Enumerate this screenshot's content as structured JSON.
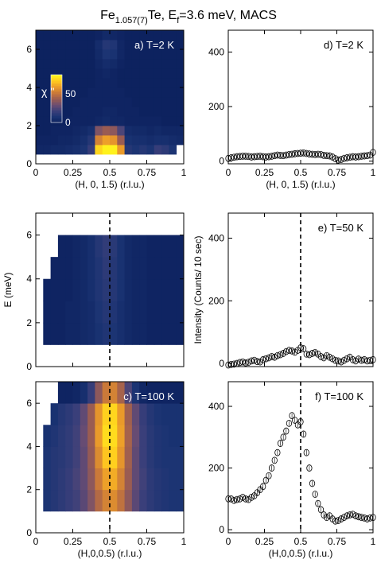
{
  "figure": {
    "title_parts": [
      "Fe",
      "1.057(7)",
      "Te, E",
      "f",
      "=3.6 meV, MACS"
    ]
  },
  "colors": {
    "colormap": [
      "#0b1f5c",
      "#1a3373",
      "#3a3f7a",
      "#6a4d73",
      "#9a5c52",
      "#c8773a",
      "#ea9a2a",
      "#ffc81f",
      "#fff21c"
    ],
    "empty": "#ffffff"
  },
  "colorbar": {
    "label": "χ ''",
    "ticks": [
      "50",
      "0"
    ]
  },
  "chart_data": [
    {
      "id": "a",
      "type": "heatmap",
      "label": "a) T=2 K",
      "xlabel": "(H, 0, 1.5) (r.l.u.)",
      "ylabel": "",
      "xlim": [
        0,
        1
      ],
      "ylim": [
        0,
        7
      ],
      "x_ticks": [
        "0",
        "0.25",
        "0.5",
        "0.75",
        "1"
      ],
      "y_ticks": [
        "0",
        "2",
        "4",
        "6"
      ],
      "x_edges": [
        0,
        0.05,
        0.1,
        0.15,
        0.2,
        0.25,
        0.3,
        0.35,
        0.4,
        0.45,
        0.5,
        0.55,
        0.6,
        0.65,
        0.7,
        0.75,
        0.8,
        0.85,
        0.9,
        0.95,
        1.0
      ],
      "rows": [
        {
          "e0": 0.0,
          "e1": 0.5,
          "v": [
            null,
            null,
            null,
            null,
            null,
            null,
            null,
            null,
            null,
            null,
            null,
            null,
            null,
            null,
            null,
            null,
            null,
            null,
            null,
            null
          ]
        },
        {
          "e0": 0.5,
          "e1": 1.0,
          "v": [
            3,
            3,
            4,
            4,
            5,
            6,
            8,
            14,
            55,
            62,
            60,
            45,
            10,
            8,
            10,
            8,
            14,
            12,
            8,
            null
          ]
        },
        {
          "e0": 1.0,
          "e1": 1.5,
          "v": [
            2,
            2,
            2,
            3,
            3,
            4,
            6,
            10,
            40,
            46,
            44,
            30,
            7,
            6,
            6,
            5,
            6,
            6,
            5,
            4
          ]
        },
        {
          "e0": 1.5,
          "e1": 2.0,
          "v": [
            1,
            1,
            2,
            2,
            2,
            3,
            4,
            6,
            26,
            30,
            28,
            18,
            5,
            4,
            4,
            3,
            4,
            3,
            3,
            3
          ]
        },
        {
          "e0": 2.0,
          "e1": 2.5,
          "v": [
            1,
            1,
            1,
            1,
            2,
            2,
            2,
            2,
            3,
            4,
            3,
            3,
            2,
            2,
            2,
            2,
            2,
            1,
            1,
            1
          ]
        },
        {
          "e0": 2.5,
          "e1": 3.0,
          "v": [
            1,
            1,
            1,
            1,
            1,
            2,
            2,
            2,
            2,
            3,
            3,
            2,
            2,
            2,
            1,
            1,
            1,
            1,
            1,
            1
          ]
        },
        {
          "e0": 3.0,
          "e1": 3.5,
          "v": [
            1,
            1,
            1,
            1,
            1,
            1,
            2,
            2,
            2,
            2,
            2,
            2,
            2,
            1,
            1,
            1,
            1,
            1,
            1,
            1
          ]
        },
        {
          "e0": 3.5,
          "e1": 4.0,
          "v": [
            1,
            1,
            1,
            1,
            1,
            1,
            1,
            2,
            2,
            2,
            2,
            2,
            1,
            1,
            1,
            1,
            1,
            1,
            1,
            1
          ]
        },
        {
          "e0": 4.0,
          "e1": 4.5,
          "v": [
            1,
            1,
            1,
            1,
            1,
            1,
            1,
            1,
            2,
            2,
            2,
            1,
            1,
            1,
            1,
            1,
            1,
            1,
            1,
            1
          ]
        },
        {
          "e0": 4.5,
          "e1": 5.0,
          "v": [
            1,
            1,
            1,
            1,
            1,
            1,
            1,
            1,
            2,
            3,
            2,
            1,
            1,
            1,
            1,
            1,
            1,
            1,
            1,
            1
          ]
        },
        {
          "e0": 5.0,
          "e1": 5.5,
          "v": [
            1,
            1,
            1,
            1,
            1,
            1,
            1,
            1,
            3,
            5,
            4,
            2,
            1,
            1,
            1,
            1,
            1,
            1,
            1,
            1
          ]
        },
        {
          "e0": 5.5,
          "e1": 6.0,
          "v": [
            1,
            1,
            1,
            1,
            1,
            1,
            1,
            1,
            4,
            8,
            7,
            3,
            1,
            1,
            1,
            1,
            1,
            1,
            1,
            1
          ]
        },
        {
          "e0": 6.0,
          "e1": 6.5,
          "v": [
            1,
            1,
            1,
            1,
            1,
            1,
            1,
            1,
            5,
            10,
            9,
            3,
            1,
            1,
            1,
            1,
            1,
            1,
            1,
            1
          ]
        },
        {
          "e0": 6.5,
          "e1": 7.0,
          "v": [
            1,
            1,
            1,
            1,
            1,
            1,
            1,
            1,
            2,
            4,
            3,
            2,
            1,
            1,
            1,
            1,
            1,
            1,
            1,
            1
          ]
        }
      ]
    },
    {
      "id": "b",
      "type": "heatmap",
      "label": "b) T=50 K",
      "xlabel": "",
      "ylabel": "E (meV)",
      "xlim": [
        0,
        1
      ],
      "ylim": [
        0,
        7
      ],
      "x_ticks": [],
      "y_ticks": [
        "0",
        "2",
        "4",
        "6"
      ],
      "dashed_x": 0.5,
      "x_edges": [
        0,
        0.05,
        0.1,
        0.15,
        0.2,
        0.25,
        0.3,
        0.35,
        0.4,
        0.45,
        0.5,
        0.55,
        0.6,
        0.65,
        0.7,
        0.75,
        0.8,
        0.85,
        0.9,
        0.95,
        1.0
      ],
      "rows": [
        {
          "e0": 0.0,
          "e1": 1.0,
          "v": [
            null,
            null,
            null,
            null,
            null,
            null,
            null,
            null,
            null,
            null,
            null,
            null,
            null,
            null,
            null,
            null,
            null,
            null,
            null,
            null
          ]
        },
        {
          "e0": 1.0,
          "e1": 2.0,
          "v": [
            null,
            2,
            2,
            2,
            3,
            3,
            4,
            5,
            7,
            9,
            8,
            6,
            4,
            3,
            3,
            2,
            2,
            2,
            2,
            2
          ]
        },
        {
          "e0": 2.0,
          "e1": 3.0,
          "v": [
            null,
            2,
            2,
            2,
            3,
            3,
            4,
            5,
            8,
            10,
            9,
            6,
            4,
            3,
            3,
            2,
            2,
            2,
            2,
            2
          ]
        },
        {
          "e0": 3.0,
          "e1": 4.0,
          "v": [
            null,
            2,
            2,
            2,
            2,
            3,
            4,
            6,
            9,
            11,
            10,
            7,
            4,
            3,
            3,
            2,
            2,
            2,
            2,
            2
          ]
        },
        {
          "e0": 4.0,
          "e1": 5.0,
          "v": [
            null,
            null,
            2,
            2,
            2,
            3,
            4,
            6,
            9,
            12,
            10,
            7,
            4,
            3,
            3,
            2,
            2,
            2,
            2,
            2
          ]
        },
        {
          "e0": 5.0,
          "e1": 6.0,
          "v": [
            null,
            null,
            null,
            2,
            2,
            3,
            4,
            6,
            10,
            13,
            11,
            7,
            4,
            3,
            3,
            2,
            2,
            2,
            2,
            2
          ]
        },
        {
          "e0": 6.0,
          "e1": 7.0,
          "v": [
            null,
            null,
            null,
            null,
            null,
            null,
            null,
            null,
            null,
            null,
            null,
            null,
            null,
            null,
            null,
            null,
            null,
            null,
            null,
            null
          ]
        }
      ]
    },
    {
      "id": "c",
      "type": "heatmap",
      "label": "c) T=100 K",
      "xlabel": "(H,0,0.5) (r.l.u.)",
      "ylabel": "",
      "xlim": [
        0,
        1
      ],
      "ylim": [
        0,
        7
      ],
      "x_ticks": [
        "0",
        "0.25",
        "0.5",
        "0.75",
        "1"
      ],
      "y_ticks": [
        "0",
        "2",
        "4",
        "6"
      ],
      "dashed_x": 0.5,
      "x_edges": [
        0,
        0.05,
        0.1,
        0.15,
        0.2,
        0.25,
        0.3,
        0.35,
        0.4,
        0.45,
        0.5,
        0.55,
        0.6,
        0.65,
        0.7,
        0.75,
        0.8,
        0.85,
        0.9,
        0.95,
        1.0
      ],
      "rows": [
        {
          "e0": 0.0,
          "e1": 1.0,
          "v": [
            null,
            null,
            null,
            null,
            null,
            null,
            null,
            null,
            null,
            null,
            null,
            null,
            null,
            null,
            null,
            null,
            null,
            null,
            null,
            null
          ]
        },
        {
          "e0": 1.0,
          "e1": 2.0,
          "v": [
            null,
            8,
            10,
            12,
            14,
            16,
            20,
            26,
            34,
            40,
            42,
            36,
            28,
            20,
            15,
            12,
            10,
            9,
            8,
            8
          ]
        },
        {
          "e0": 2.0,
          "e1": 3.0,
          "v": [
            null,
            8,
            10,
            12,
            14,
            17,
            21,
            28,
            38,
            46,
            48,
            40,
            30,
            21,
            16,
            12,
            10,
            9,
            8,
            8
          ]
        },
        {
          "e0": 3.0,
          "e1": 4.0,
          "v": [
            null,
            8,
            10,
            11,
            13,
            16,
            21,
            29,
            42,
            52,
            54,
            44,
            31,
            21,
            15,
            11,
            9,
            8,
            8,
            8
          ]
        },
        {
          "e0": 4.0,
          "e1": 5.0,
          "v": [
            null,
            7,
            9,
            11,
            13,
            16,
            22,
            30,
            45,
            56,
            56,
            46,
            32,
            22,
            15,
            11,
            9,
            8,
            7,
            7
          ]
        },
        {
          "e0": 5.0,
          "e1": 6.0,
          "v": [
            null,
            null,
            7,
            10,
            12,
            15,
            21,
            30,
            44,
            54,
            55,
            45,
            31,
            21,
            14,
            10,
            8,
            7,
            7,
            7
          ]
        },
        {
          "e0": 6.0,
          "e1": 7.0,
          "v": [
            null,
            null,
            null,
            2,
            2,
            3,
            6,
            14,
            28,
            38,
            40,
            32,
            18,
            8,
            3,
            2,
            2,
            2,
            2,
            2
          ]
        }
      ]
    },
    {
      "id": "d",
      "type": "scatter",
      "label": "d) T=2 K",
      "xlabel": "(H, 0, 1.5) (r.l.u.)",
      "ylabel": "",
      "xlim": [
        0,
        1
      ],
      "ylim": [
        -10,
        480
      ],
      "x_ticks": [
        "0",
        "0.25",
        "0.5",
        "0.75",
        "1"
      ],
      "y_ticks": [
        "0",
        "200",
        "400"
      ],
      "x": [
        0.0,
        0.02,
        0.04,
        0.06,
        0.08,
        0.1,
        0.12,
        0.14,
        0.16,
        0.18,
        0.2,
        0.22,
        0.24,
        0.26,
        0.28,
        0.3,
        0.32,
        0.34,
        0.36,
        0.38,
        0.4,
        0.42,
        0.44,
        0.46,
        0.48,
        0.5,
        0.52,
        0.54,
        0.56,
        0.58,
        0.6,
        0.62,
        0.64,
        0.66,
        0.68,
        0.7,
        0.72,
        0.74,
        0.76,
        0.78,
        0.8,
        0.82,
        0.84,
        0.86,
        0.88,
        0.9,
        0.92,
        0.94,
        0.96,
        0.98,
        1.0
      ],
      "y": [
        10,
        12,
        14,
        16,
        17,
        18,
        18,
        17,
        15,
        16,
        17,
        18,
        16,
        15,
        16,
        18,
        20,
        22,
        21,
        20,
        22,
        24,
        25,
        27,
        28,
        29,
        30,
        28,
        26,
        25,
        24,
        25,
        24,
        21,
        20,
        19,
        15,
        9,
        4,
        6,
        10,
        12,
        14,
        16,
        15,
        16,
        18,
        19,
        20,
        22,
        32
      ]
    },
    {
      "id": "e",
      "type": "scatter",
      "label": "e) T=50 K",
      "xlabel": "",
      "ylabel": "Intensity (Counts/ 10 sec)",
      "xlim": [
        0,
        1
      ],
      "ylim": [
        -10,
        480
      ],
      "x_ticks": [],
      "y_ticks": [
        "0",
        "200",
        "400"
      ],
      "dashed_x": 0.5,
      "x": [
        0.0,
        0.02,
        0.04,
        0.06,
        0.08,
        0.1,
        0.12,
        0.14,
        0.16,
        0.18,
        0.2,
        0.22,
        0.24,
        0.26,
        0.28,
        0.3,
        0.32,
        0.34,
        0.36,
        0.38,
        0.4,
        0.42,
        0.44,
        0.46,
        0.48,
        0.5,
        0.52,
        0.54,
        0.56,
        0.58,
        0.6,
        0.62,
        0.64,
        0.66,
        0.68,
        0.7,
        0.72,
        0.74,
        0.76,
        0.78,
        0.8,
        0.82,
        0.84,
        0.86,
        0.88,
        0.9,
        0.92,
        0.94,
        0.96,
        0.98,
        1.0
      ],
      "y": [
        -5,
        -3,
        -2,
        0,
        3,
        5,
        2,
        4,
        8,
        10,
        6,
        5,
        12,
        15,
        18,
        22,
        20,
        25,
        28,
        32,
        38,
        42,
        40,
        36,
        42,
        50,
        47,
        30,
        28,
        32,
        35,
        30,
        22,
        18,
        25,
        20,
        15,
        10,
        8,
        5,
        10,
        15,
        20,
        12,
        8,
        14,
        10,
        12,
        8,
        10,
        12
      ]
    },
    {
      "id": "f",
      "type": "scatter",
      "label": "f) T=100 K",
      "xlabel": "(H,0,0.5) (r.l.u.)",
      "ylabel": "",
      "xlim": [
        0,
        1
      ],
      "ylim": [
        -10,
        480
      ],
      "x_ticks": [
        "0",
        "0.25",
        "0.5",
        "0.75",
        "1"
      ],
      "y_ticks": [
        "0",
        "200",
        "400"
      ],
      "dashed_x": 0.5,
      "x": [
        0.0,
        0.02,
        0.04,
        0.06,
        0.08,
        0.1,
        0.12,
        0.14,
        0.16,
        0.18,
        0.2,
        0.22,
        0.24,
        0.26,
        0.28,
        0.3,
        0.32,
        0.34,
        0.36,
        0.38,
        0.4,
        0.42,
        0.44,
        0.46,
        0.48,
        0.5,
        0.52,
        0.54,
        0.56,
        0.58,
        0.6,
        0.62,
        0.64,
        0.66,
        0.68,
        0.7,
        0.72,
        0.74,
        0.76,
        0.78,
        0.8,
        0.82,
        0.84,
        0.86,
        0.88,
        0.9,
        0.92,
        0.94,
        0.96,
        0.98,
        1.0
      ],
      "y": [
        100,
        100,
        95,
        98,
        100,
        105,
        100,
        98,
        105,
        110,
        120,
        130,
        140,
        160,
        175,
        200,
        225,
        250,
        280,
        300,
        320,
        345,
        370,
        355,
        340,
        350,
        310,
        250,
        200,
        150,
        115,
        85,
        65,
        48,
        40,
        45,
        35,
        28,
        30,
        35,
        40,
        45,
        48,
        50,
        45,
        42,
        40,
        38,
        35,
        38,
        40
      ]
    }
  ]
}
